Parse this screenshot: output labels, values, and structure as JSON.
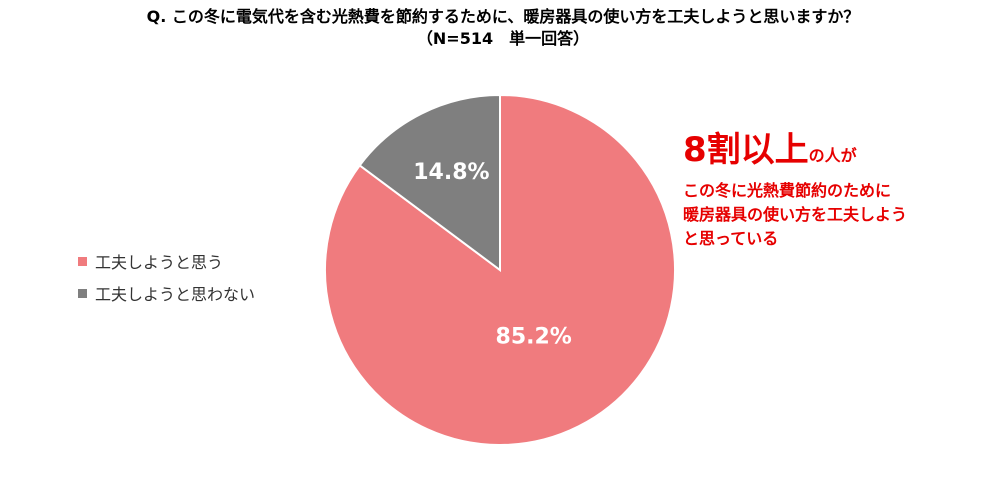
{
  "title": {
    "line1": "Q. この冬に電気代を含む光熱費を節約するために、暖房器具の使い方を工夫しようと思いますか？",
    "line2": "（N=514　単一回答）"
  },
  "chart_data": {
    "type": "pie",
    "title": "Q. この冬に電気代を含む光熱費を節約するために、暖房器具の使い方を工夫しようと思いますか？",
    "subtitle": "（N=514　単一回答）",
    "legend_position": "left",
    "slices": [
      {
        "label": "工夫しようと思う",
        "value": 85.2,
        "display": "85.2%",
        "color": "#f07b7e"
      },
      {
        "label": "工夫しようと思わない",
        "value": 14.8,
        "display": "14.8%",
        "color": "#7f7f7f"
      }
    ]
  },
  "callout": {
    "emphasis": "8割以上",
    "emphasis_suffix": "の人が",
    "lines": [
      "この冬に光熱費節約のために",
      "暖房器具の使い方を工夫しよう",
      "と思っている"
    ],
    "color": "#e60000"
  }
}
